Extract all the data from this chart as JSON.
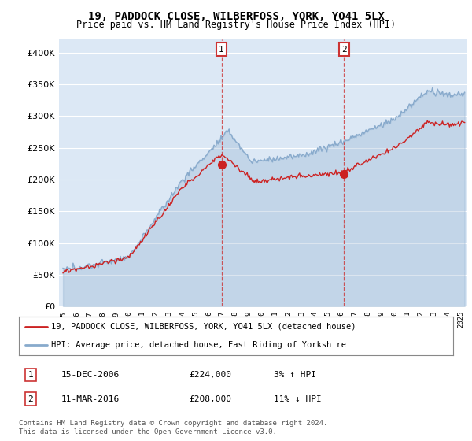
{
  "title": "19, PADDOCK CLOSE, WILBERFOSS, YORK, YO41 5LX",
  "subtitle": "Price paid vs. HM Land Registry's House Price Index (HPI)",
  "ylim": [
    0,
    420000
  ],
  "yticks": [
    0,
    50000,
    100000,
    150000,
    200000,
    250000,
    300000,
    350000,
    400000
  ],
  "sale1_date": 2006.958,
  "sale1_price": 224000,
  "sale2_date": 2016.19,
  "sale2_price": 208000,
  "legend_line1": "19, PADDOCK CLOSE, WILBERFOSS, YORK, YO41 5LX (detached house)",
  "legend_line2": "HPI: Average price, detached house, East Riding of Yorkshire",
  "table_row1_num": "1",
  "table_row1_date": "15-DEC-2006",
  "table_row1_price": "£224,000",
  "table_row1_hpi": "3% ↑ HPI",
  "table_row2_num": "2",
  "table_row2_date": "11-MAR-2016",
  "table_row2_price": "£208,000",
  "table_row2_hpi": "11% ↓ HPI",
  "footer": "Contains HM Land Registry data © Crown copyright and database right 2024.\nThis data is licensed under the Open Government Licence v3.0.",
  "red_color": "#cc2222",
  "blue_color": "#88aacc",
  "highlight_bg": "#dce8f5",
  "xmin": 1994.7,
  "xmax": 2025.5
}
